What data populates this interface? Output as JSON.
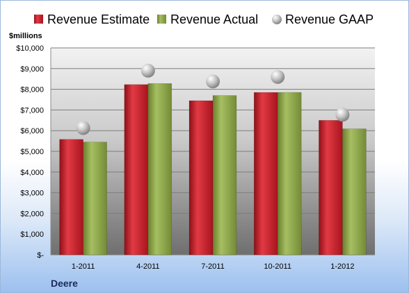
{
  "chart_data": {
    "type": "bar",
    "ylabel": "$millions",
    "footer": "Deere",
    "categories": [
      "1-2011",
      "4-2011",
      "7-2011",
      "10-2011",
      "1-2012"
    ],
    "series": [
      {
        "name": "Revenue Estimate",
        "kind": "bar",
        "color": "#c81e2a",
        "values": [
          5580,
          8230,
          7450,
          7850,
          6500
        ]
      },
      {
        "name": "Revenue Actual",
        "kind": "bar",
        "color": "#8fa84a",
        "values": [
          5450,
          8280,
          7700,
          7850,
          6090
        ]
      },
      {
        "name": "Revenue GAAP",
        "kind": "marker",
        "color": "#b9b9b9",
        "values": [
          6130,
          8900,
          8380,
          8600,
          6770
        ]
      }
    ],
    "ylim": [
      0,
      10000
    ],
    "yticks": [
      0,
      1000,
      2000,
      3000,
      4000,
      5000,
      6000,
      7000,
      8000,
      9000,
      10000
    ],
    "ytick_labels": [
      "$-",
      "$1,000",
      "$2,000",
      "$3,000",
      "$4,000",
      "$5,000",
      "$6,000",
      "$7,000",
      "$8,000",
      "$9,000",
      "$10,000"
    ],
    "grid": true,
    "legend_position": "top"
  }
}
